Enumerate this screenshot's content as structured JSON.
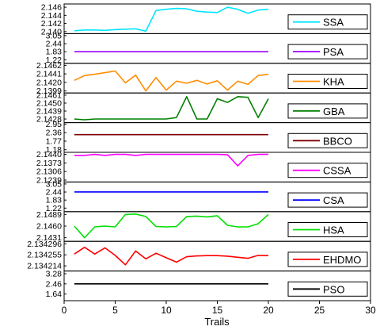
{
  "chart_data": {
    "type": "line",
    "xlabel": "Trails",
    "x_ticks": [
      0,
      5,
      10,
      15,
      20,
      25,
      30
    ],
    "xlim": [
      0,
      30
    ],
    "x": [
      1,
      2,
      3,
      4,
      5,
      6,
      7,
      8,
      9,
      10,
      11,
      12,
      13,
      14,
      15,
      16,
      17,
      18,
      19,
      20
    ],
    "panels": [
      {
        "name": "SSA",
        "color": "#00e5ff",
        "ylim": [
          2.1395,
          2.1468
        ],
        "ytick_labels": [
          "2.146",
          "2.144",
          "2.142",
          "2.140"
        ],
        "ytick_values": [
          2.146,
          2.144,
          2.142,
          2.14
        ],
        "values": [
          2.1402,
          2.1404,
          2.1404,
          2.1403,
          2.1405,
          2.1406,
          2.1407,
          2.1401,
          2.1452,
          2.1455,
          2.1457,
          2.1456,
          2.145,
          2.1448,
          2.1447,
          2.146,
          2.1455,
          2.1445,
          2.1453,
          2.1455
        ]
      },
      {
        "name": "PSA",
        "color": "#9b00ff",
        "ylim": [
          0.95,
          3.2
        ],
        "ytick_labels": [
          "3.05",
          "2.44",
          "1.83",
          "1.22"
        ],
        "ytick_values": [
          3.05,
          2.44,
          1.83,
          1.22
        ],
        "values": [
          1.83,
          1.83,
          1.83,
          1.83,
          1.83,
          1.83,
          1.83,
          1.83,
          1.83,
          1.83,
          1.83,
          1.83,
          1.83,
          1.83,
          1.83,
          1.83,
          1.83,
          1.83,
          1.83,
          1.83
        ]
      },
      {
        "name": "KHA",
        "color": "#ff8c00",
        "ylim": [
          2.1394,
          2.1467
        ],
        "ytick_labels": [
          "2.1462",
          "2.1441",
          "2.1420",
          "2.1399"
        ],
        "ytick_values": [
          2.1462,
          2.1441,
          2.142,
          2.1399
        ],
        "values": [
          2.1425,
          2.1437,
          2.144,
          2.1444,
          2.1448,
          2.1419,
          2.1438,
          2.1399,
          2.1432,
          2.1401,
          2.1423,
          2.1418,
          2.1425,
          2.1416,
          2.1424,
          2.1401,
          2.1423,
          2.1415,
          2.1437,
          2.144
        ]
      },
      {
        "name": "GBA",
        "color": "#008000",
        "ylim": [
          2.1423,
          2.1464
        ],
        "ytick_labels": [
          "2.1461",
          "2.1450",
          "2.1439",
          "2.1428"
        ],
        "ytick_values": [
          2.1461,
          2.145,
          2.1439,
          2.1428
        ],
        "values": [
          2.1428,
          2.1427,
          2.1428,
          2.1428,
          2.1428,
          2.1428,
          2.1428,
          2.1428,
          2.1428,
          2.1428,
          2.143,
          2.1459,
          2.1428,
          2.1428,
          2.1456,
          2.1451,
          2.1459,
          2.1458,
          2.143,
          2.1456
        ]
      },
      {
        "name": "BBCO",
        "color": "#800000",
        "ylim": [
          1.0,
          3.05
        ],
        "ytick_labels": [
          "2.95",
          "2.36",
          "1.77",
          "1.18"
        ],
        "ytick_values": [
          2.95,
          2.36,
          1.77,
          1.18
        ],
        "values": [
          2.22,
          2.22,
          2.22,
          2.22,
          2.22,
          2.22,
          2.22,
          2.22,
          2.22,
          2.22,
          2.22,
          2.22,
          2.22,
          2.22,
          2.22,
          2.22,
          2.22,
          2.22,
          2.22,
          2.22
        ]
      },
      {
        "name": "CSSA",
        "color": "#ff00ff",
        "ylim": [
          2.1224,
          2.1456
        ],
        "ytick_labels": [
          "2.1440",
          "2.1373",
          "2.1306",
          "2.1239"
        ],
        "ytick_values": [
          2.144,
          2.1373,
          2.1306,
          2.1239
        ],
        "values": [
          2.1432,
          2.1432,
          2.144,
          2.1432,
          2.144,
          2.144,
          2.1432,
          2.144,
          2.144,
          2.144,
          2.144,
          2.144,
          2.144,
          2.144,
          2.144,
          2.1437,
          2.135,
          2.1432,
          2.144,
          2.144
        ]
      },
      {
        "name": "CSA",
        "color": "#0000ff",
        "ylim": [
          0.95,
          3.2
        ],
        "ytick_labels": [
          "3.05",
          "2.44",
          "1.83",
          "1.22"
        ],
        "ytick_values": [
          3.05,
          2.44,
          1.83,
          1.22
        ],
        "values": [
          2.45,
          2.45,
          2.45,
          2.45,
          2.45,
          2.45,
          2.45,
          2.45,
          2.45,
          2.45,
          2.45,
          2.45,
          2.45,
          2.45,
          2.45,
          2.45,
          2.45,
          2.45,
          2.45,
          2.45
        ]
      },
      {
        "name": "HSA",
        "color": "#00e000",
        "ylim": [
          2.1422,
          2.1496
        ],
        "ytick_labels": [
          "2.1489",
          "2.1460",
          "2.1431"
        ],
        "ytick_values": [
          2.1489,
          2.146,
          2.1431
        ],
        "values": [
          2.146,
          2.1431,
          2.1458,
          2.146,
          2.1458,
          2.1489,
          2.149,
          2.1484,
          2.1459,
          2.1458,
          2.1459,
          2.1484,
          2.1485,
          2.1483,
          2.1486,
          2.1462,
          2.1458,
          2.1458,
          2.1466,
          2.1489
        ]
      },
      {
        "name": "EHDMO",
        "color": "#ff0000",
        "ylim": [
          2.134195,
          2.134305
        ],
        "ytick_labels": [
          "2.134296",
          "2.134255",
          "2.134214"
        ],
        "ytick_values": [
          2.134296,
          2.134255,
          2.134214
        ],
        "values": [
          2.134258,
          2.134283,
          2.134258,
          2.134281,
          2.134253,
          2.134218,
          2.134269,
          2.13424,
          2.134261,
          2.134244,
          2.134228,
          2.134248,
          2.134251,
          2.134252,
          2.134252,
          2.13425,
          2.134246,
          2.134242,
          2.134253,
          2.134252
        ]
      },
      {
        "name": "PSO",
        "color": "#000000",
        "ylim": [
          1.1,
          3.5
        ],
        "ytick_labels": [
          "3.28",
          "2.46",
          "1.64"
        ],
        "ytick_values": [
          3.28,
          2.46,
          1.64
        ],
        "values": [
          2.46,
          2.46,
          2.46,
          2.46,
          2.46,
          2.46,
          2.46,
          2.46,
          2.46,
          2.46,
          2.46,
          2.46,
          2.46,
          2.46,
          2.46,
          2.46,
          2.46,
          2.46,
          2.46,
          2.46
        ]
      }
    ]
  }
}
